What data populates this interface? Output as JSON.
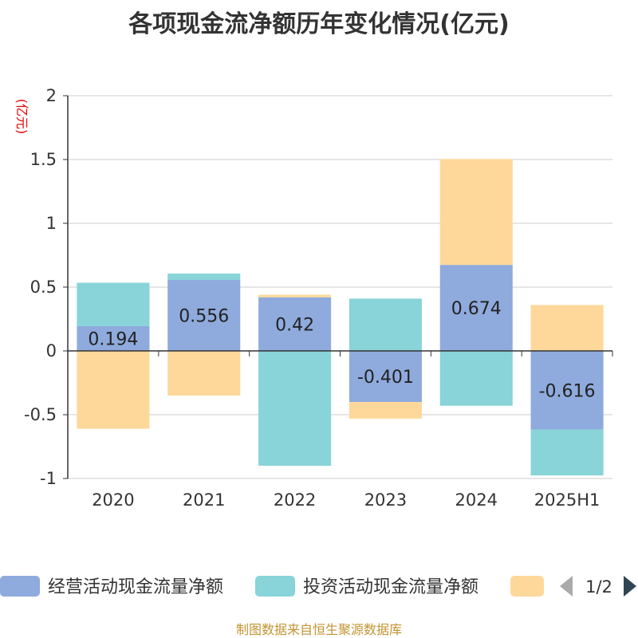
{
  "chart_data": {
    "type": "bar",
    "stacked": true,
    "title": "各项现金流净额历年变化情况(亿元)",
    "ylabel": "(亿元)",
    "xlabel": "",
    "categories": [
      "2020",
      "2021",
      "2022",
      "2023",
      "2024",
      "2025H1"
    ],
    "ylim": [
      -1,
      2
    ],
    "yticks": [
      -1,
      -0.5,
      0,
      0.5,
      1,
      1.5,
      2
    ],
    "grid": true,
    "legend_position": "bottom",
    "series": [
      {
        "name": "经营活动现金流量净额",
        "color": "#8faadc",
        "show_labels": true,
        "values": [
          0.194,
          0.556,
          0.42,
          -0.401,
          0.674,
          -0.616
        ]
      },
      {
        "name": "投资活动现金流量净额",
        "color": "#88d4d8",
        "values": [
          0.34,
          0.05,
          -0.9,
          0.41,
          -0.43,
          -0.36
        ]
      },
      {
        "color": "#fed89a",
        "values": [
          -0.61,
          -0.35,
          0.02,
          -0.13,
          0.83,
          0.36
        ]
      }
    ]
  },
  "legend": {
    "page_indicator": "1/2",
    "prev_icon": "triangle-left-icon",
    "next_icon": "triangle-right-icon",
    "prev_color": "#aaaaaa",
    "next_color": "#2f4554"
  },
  "source_note": "制图数据来自恒生聚源数据库"
}
